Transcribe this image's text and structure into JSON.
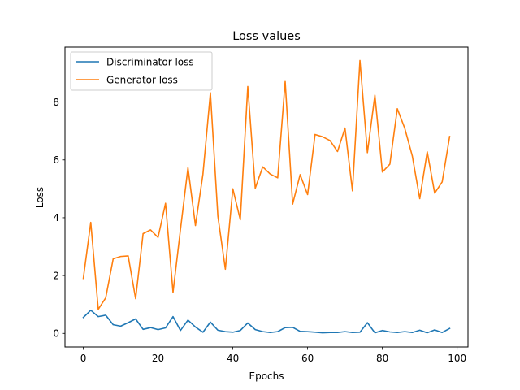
{
  "chart_data": {
    "type": "line",
    "title": "Loss values",
    "xlabel": "Epochs",
    "ylabel": "Loss",
    "xlim": [
      -4.9,
      102.9
    ],
    "ylim": [
      -0.47,
      9.9
    ],
    "xticks": [
      0,
      20,
      40,
      60,
      80,
      100
    ],
    "yticks": [
      0,
      2,
      4,
      6,
      8
    ],
    "grid": false,
    "legend_position": "top-left",
    "series": [
      {
        "name": "Discriminator loss",
        "color": "#1f77b4",
        "x": [
          0,
          2,
          4,
          6,
          8,
          10,
          12,
          14,
          16,
          18,
          20,
          22,
          24,
          26,
          28,
          30,
          32,
          34,
          36,
          38,
          40,
          42,
          44,
          46,
          48,
          50,
          52,
          54,
          56,
          58,
          60,
          62,
          64,
          66,
          68,
          70,
          72,
          74,
          76,
          78,
          80,
          82,
          84,
          86,
          88,
          90,
          92,
          94,
          96,
          98
        ],
        "values": [
          0.55,
          0.8,
          0.58,
          0.63,
          0.3,
          0.25,
          0.37,
          0.5,
          0.14,
          0.2,
          0.13,
          0.19,
          0.58,
          0.1,
          0.46,
          0.22,
          0.04,
          0.39,
          0.11,
          0.06,
          0.04,
          0.1,
          0.36,
          0.13,
          0.06,
          0.03,
          0.06,
          0.2,
          0.21,
          0.07,
          0.06,
          0.04,
          0.02,
          0.03,
          0.03,
          0.06,
          0.03,
          0.04,
          0.37,
          0.02,
          0.1,
          0.05,
          0.03,
          0.06,
          0.03,
          0.11,
          0.02,
          0.12,
          0.03,
          0.17
        ]
      },
      {
        "name": "Generator loss",
        "color": "#ff7f0e",
        "x": [
          0,
          2,
          4,
          6,
          8,
          10,
          12,
          14,
          16,
          18,
          20,
          22,
          24,
          26,
          28,
          30,
          32,
          34,
          36,
          38,
          40,
          42,
          44,
          46,
          48,
          50,
          52,
          54,
          56,
          58,
          60,
          62,
          64,
          66,
          68,
          70,
          72,
          74,
          76,
          78,
          80,
          82,
          84,
          86,
          88,
          90,
          92,
          94,
          96,
          98
        ],
        "values": [
          1.9,
          3.84,
          0.83,
          1.23,
          2.58,
          2.66,
          2.68,
          1.2,
          3.45,
          3.58,
          3.32,
          4.5,
          1.42,
          3.6,
          5.73,
          3.73,
          5.5,
          8.32,
          4.05,
          2.22,
          5.0,
          3.93,
          8.54,
          5.02,
          5.76,
          5.51,
          5.38,
          8.71,
          4.47,
          5.49,
          4.8,
          6.88,
          6.8,
          6.67,
          6.29,
          7.1,
          4.93,
          9.44,
          6.25,
          8.24,
          5.58,
          5.85,
          7.77,
          7.09,
          6.14,
          4.66,
          6.28,
          4.85,
          5.24,
          6.81
        ]
      }
    ]
  }
}
